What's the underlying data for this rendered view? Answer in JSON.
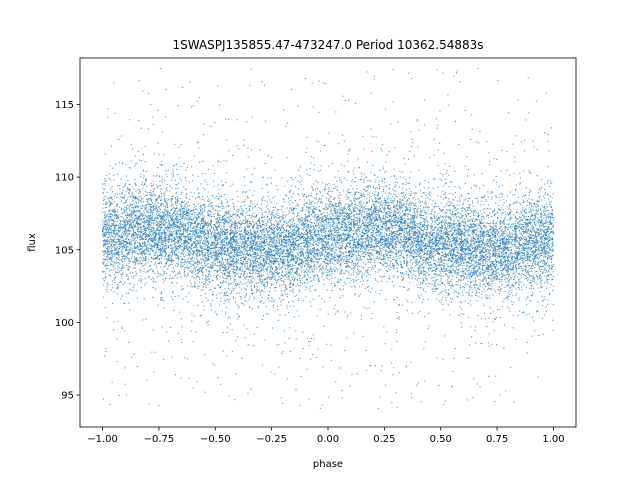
{
  "chart_data": {
    "type": "scatter",
    "title": "1SWASPJ135855.47-473247.0 Period 10362.54883s",
    "xlabel": "phase",
    "ylabel": "flux",
    "xlim": [
      -1.1,
      1.1
    ],
    "ylim": [
      92.8,
      118.2
    ],
    "xticks": [
      -1.0,
      -0.75,
      -0.5,
      -0.25,
      0.0,
      0.25,
      0.5,
      0.75,
      1.0
    ],
    "xtick_labels": [
      "−1.00",
      "−0.75",
      "−0.50",
      "−0.25",
      "0.00",
      "0.25",
      "0.50",
      "0.75",
      "1.00"
    ],
    "yticks": [
      95,
      100,
      105,
      110,
      115
    ],
    "ytick_labels": [
      "95",
      "100",
      "105",
      "110",
      "115"
    ],
    "grid": false,
    "legend": "none",
    "color": "#1f77b4",
    "series": [
      {
        "phase_range": [
          -1.0,
          1.0
        ],
        "flux_range": [
          94.0,
          117.5
        ],
        "model_flux_vs_phase": {
          "x": [
            -1.0,
            -0.75,
            -0.5,
            -0.25,
            0.0,
            0.25,
            0.5,
            0.75,
            1.0
          ],
          "y": [
            105.8,
            106.4,
            105.4,
            104.9,
            105.9,
            106.4,
            105.4,
            104.9,
            105.8
          ]
        },
        "core_spread": 1.6,
        "outlier_range": [
          94.0,
          117.5
        ]
      }
    ]
  }
}
